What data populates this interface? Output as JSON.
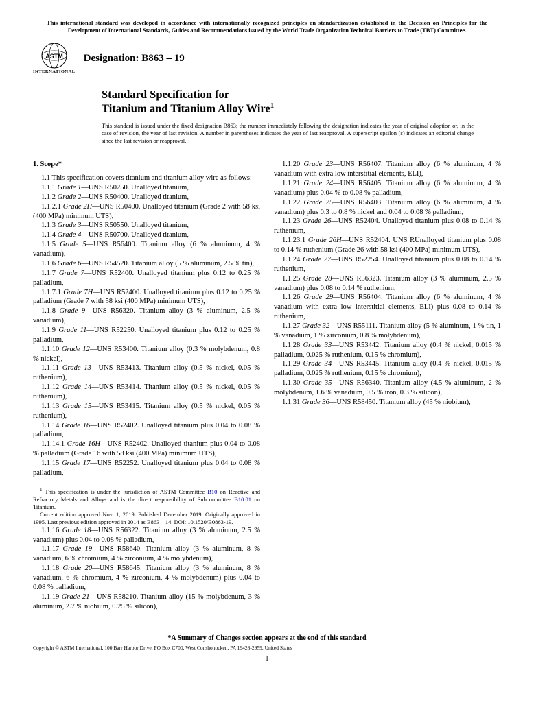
{
  "header_notice": "This international standard was developed in accordance with internationally recognized principles on standardization established in the Decision on Principles for the Development of International Standards, Guides and Recommendations issued by the World Trade Organization Technical Barriers to Trade (TBT) Committee.",
  "logo_text": "INTERNATIONAL",
  "designation_label": "Designation: B863 – 19",
  "title_pre": "Standard Specification for",
  "title_main": "Titanium and Titanium Alloy Wire",
  "title_sup": "1",
  "issuance": "This standard is issued under the fixed designation B863; the number immediately following the designation indicates the year of original adoption or, in the case of revision, the year of last revision. A number in parentheses indicates the year of last reapproval. A superscript epsilon (ε) indicates an editorial change since the last revision or reapproval.",
  "scope_head": "1. Scope*",
  "intro": "1.1 This specification covers titanium and titanium alloy wire as follows:",
  "grades_col1": [
    {
      "num": "1.1.1",
      "name": "Grade 1",
      "body": "—UNS R50250. Unalloyed titanium,"
    },
    {
      "num": "1.1.2",
      "name": "Grade 2",
      "body": "—UNS R50400. Unalloyed titanium,"
    },
    {
      "num": "1.1.2.1",
      "name": "Grade 2H",
      "body": "—UNS R50400. Unalloyed titanium (Grade 2 with 58 ksi (400 MPa) minimum UTS),"
    },
    {
      "num": "1.1.3",
      "name": "Grade 3",
      "body": "—UNS R50550. Unalloyed titanium,"
    },
    {
      "num": "1.1.4",
      "name": "Grade 4",
      "body": "—UNS R50700. Unalloyed titanium,"
    },
    {
      "num": "1.1.5",
      "name": "Grade 5",
      "body": "—UNS R56400. Titanium alloy (6 % aluminum, 4 % vanadium),"
    },
    {
      "num": "1.1.6",
      "name": "Grade 6",
      "body": "—UNS R54520. Titanium alloy (5 % aluminum, 2.5 % tin),"
    },
    {
      "num": "1.1.7",
      "name": "Grade 7",
      "body": "—UNS R52400. Unalloyed titanium plus 0.12 to 0.25 % palladium,"
    },
    {
      "num": "1.1.7.1",
      "name": "Grade 7H",
      "body": "—UNS R52400. Unalloyed titanium plus 0.12 to 0.25 % palladium (Grade 7 with 58 ksi (400 MPa) minimum UTS),"
    },
    {
      "num": "1.1.8",
      "name": "Grade 9",
      "body": "—UNS R56320. Titanium alloy (3 % aluminum, 2.5 % vanadium),"
    },
    {
      "num": "1.1.9",
      "name": "Grade 11",
      "body": "—UNS R52250. Unalloyed titanium plus 0.12 to 0.25 % palladium,"
    },
    {
      "num": "1.1.10",
      "name": "Grade 12",
      "body": "—UNS R53400. Titanium alloy (0.3 % molybdenum, 0.8 % nickel),"
    },
    {
      "num": "1.1.11",
      "name": "Grade 13",
      "body": "—UNS R53413. Titanium alloy (0.5 % nickel, 0.05 % ruthenium),"
    },
    {
      "num": "1.1.12",
      "name": "Grade 14",
      "body": "—UNS R53414. Titanium alloy (0.5 % nickel, 0.05 % ruthenium),"
    },
    {
      "num": "1.1.13",
      "name": "Grade 15",
      "body": "—UNS R53415. Titanium alloy (0.5 % nickel, 0.05 % ruthenium),"
    },
    {
      "num": "1.1.14",
      "name": "Grade 16",
      "body": "—UNS R52402. Unalloyed titanium plus 0.04 to 0.08 % palladium,"
    },
    {
      "num": "1.1.14.1",
      "name": "Grade 16H",
      "body": "—UNS R52402. Unalloyed titanium plus 0.04 to 0.08 % palladium (Grade 16 with 58 ksi (400 MPa) minimum UTS),"
    },
    {
      "num": "1.1.15",
      "name": "Grade 17",
      "body": "—UNS R52252. Unalloyed titanium plus 0.04 to 0.08 % palladium,"
    }
  ],
  "grades_col2": [
    {
      "num": "1.1.16",
      "name": "Grade 18",
      "body": "—UNS R56322. Titanium alloy (3 % aluminum, 2.5 % vanadium) plus 0.04 to 0.08 % palladium,"
    },
    {
      "num": "1.1.17",
      "name": "Grade 19",
      "body": "—UNS R58640. Titanium alloy (3 % aluminum, 8 % vanadium, 6 % chromium, 4 % zirconium, 4 % molybdenum),"
    },
    {
      "num": "1.1.18",
      "name": "Grade 20",
      "body": "—UNS R58645. Titanium alloy (3 % aluminum, 8 % vanadium, 6 % chromium, 4 % zirconium, 4 % molybdenum) plus 0.04 to 0.08 % palladium,"
    },
    {
      "num": "1.1.19",
      "name": "Grade 21",
      "body": "—UNS R58210. Titanium alloy (15 % molybdenum, 3 % aluminum, 2.7 % niobium, 0.25 % silicon),"
    },
    {
      "num": "1.1.20",
      "name": "Grade 23",
      "body": "—UNS R56407. Titanium alloy (6 % aluminum, 4 % vanadium with extra low interstitial elements, ELI),"
    },
    {
      "num": "1.1.21",
      "name": "Grade 24",
      "body": "—UNS R56405. Titanium alloy (6 % aluminum, 4 % vanadium) plus 0.04 % to 0.08 % palladium,"
    },
    {
      "num": "1.1.22",
      "name": "Grade 25",
      "body": "—UNS R56403. Titanium alloy (6 % aluminum, 4 % vanadium) plus 0.3 to 0.8 % nickel and 0.04 to 0.08 % palladium,"
    },
    {
      "num": "1.1.23",
      "name": "Grade 26",
      "body": "—UNS R52404. Unalloyed titanium plus 0.08 to 0.14 % ruthenium,"
    },
    {
      "num": "1.1.23.1",
      "name": "Grade 26H",
      "body": "—UNS R52404. UNS RUnalloyed titanium plus 0.08 to 0.14 % ruthenium (Grade 26 with 58 ksi (400 MPa) minimum UTS),"
    },
    {
      "num": "1.1.24",
      "name": "Grade 27",
      "body": "—UNS R52254. Unalloyed titanium plus 0.08 to 0.14 % ruthenium,"
    },
    {
      "num": "1.1.25",
      "name": "Grade 28",
      "body": "—UNS R56323. Titanium alloy (3 % aluminum, 2.5 % vanadium) plus 0.08 to 0.14 % ruthenium,"
    },
    {
      "num": "1.1.26",
      "name": "Grade 29",
      "body": "—UNS R56404. Titanium alloy (6 % aluminum, 4 % vanadium with extra low interstitial elements, ELI) plus 0.08 to 0.14 % ruthenium,"
    },
    {
      "num": "1.1.27",
      "name": "Grade 32",
      "body": "—UNS R55111. Titanium alloy (5 % aluminum, 1 % tin, 1 % vanadium, 1 % zirconium, 0.8 % molybdenum),"
    },
    {
      "num": "1.1.28",
      "name": "Grade 33",
      "body": "—UNS R53442. Titanium alloy (0.4 % nickel, 0.015 % palladium, 0.025 % ruthenium, 0.15 % chromium),"
    },
    {
      "num": "1.1.29",
      "name": "Grade 34",
      "body": "—UNS R53445. Titanium alloy (0.4 % nickel, 0.015 % palladium, 0.025 % ruthenium, 0.15 % chromium),"
    },
    {
      "num": "1.1.30",
      "name": "Grade 35",
      "body": "—UNS R56340. Titanium alloy (4.5 % aluminum, 2 % molybdenum, 1.6 % vanadium, 0.5 % iron, 0.3 % silicon),"
    },
    {
      "num": "1.1.31",
      "name": "Grade 36",
      "body": "—UNS R58450. Titanium alloy (45 % niobium),"
    }
  ],
  "footnotes": {
    "fn1_a": "This specification is under the jurisdiction of ASTM Committee ",
    "fn1_link1": "B10",
    "fn1_b": " on Reactive and Refractory Metals and Alloys and is the direct responsibility of Subcommittee ",
    "fn1_link2": "B10.01",
    "fn1_c": " on Titanium.",
    "fn2": "Current edition approved Nov. 1, 2019. Published December 2019. Originally approved in 1995. Last previous edition approved in 2014 as B863 – 14. DOI: 10.1520/B0863-19."
  },
  "summary_note": "*A Summary of Changes section appears at the end of this standard",
  "copyright": "Copyright © ASTM International, 100 Barr Harbor Drive, PO Box C700, West Conshohocken, PA 19428-2959. United States",
  "page_number": "1"
}
